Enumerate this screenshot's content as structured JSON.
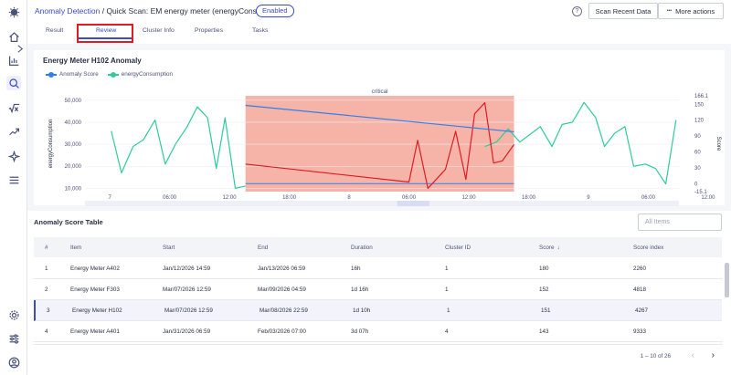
{
  "header": {
    "breadcrumb_root": "Anomaly Detection",
    "breadcrumb_sep": " / ",
    "breadcrumb_current": "Quick Scan: EM energy meter (energyConsumption)",
    "status_badge": "Enabled",
    "help_icon": "?",
    "scan_button": "Scan Recent Data",
    "more_button": "More actions",
    "more_icon": "•••"
  },
  "tabs": [
    "Result",
    "Review",
    "Cluster Info",
    "Properties",
    "Tasks"
  ],
  "active_tab": "Review",
  "sidebar_icons": [
    "logo-icon",
    "home-icon",
    "expand-icon",
    "chart-icon",
    "search-icon",
    "formula-icon",
    "trend-icon",
    "sparkle-icon",
    "menu-icon",
    "settings-icon",
    "sliders-icon",
    "user-icon"
  ],
  "chart_data": {
    "type": "line",
    "title": "Energy Meter H102 Anomaly",
    "legend": [
      "Anomaly Score",
      "energyConsumption"
    ],
    "series_colors": {
      "Anomaly Score": "#2f80ed",
      "energyConsumption": "#2ecc9a"
    },
    "ylabel_left": "energyConsumption",
    "ylabel_right": "Score",
    "y_left_ticks": [
      "50,000",
      "40,000",
      "30,000",
      "20,000",
      "10,000"
    ],
    "y_right_ticks": [
      "166.1",
      "150",
      "120",
      "90",
      "60",
      "30",
      "0",
      "-15.1"
    ],
    "x_ticks": [
      "7",
      "06:00",
      "12:00",
      "18:00",
      "8",
      "06:00",
      "12:00",
      "18:00",
      "9",
      "06:00",
      "12:00"
    ],
    "region_label": "critical",
    "region_color": "#f5a799",
    "energy_points_before": [
      [
        0.0,
        36000
      ],
      [
        0.7,
        17000
      ],
      [
        1.5,
        29000
      ],
      [
        2.2,
        32000
      ],
      [
        3.0,
        41000
      ],
      [
        3.7,
        21000
      ],
      [
        4.4,
        30000
      ],
      [
        5.2,
        38000
      ],
      [
        5.9,
        47000
      ],
      [
        6.6,
        42000
      ],
      [
        7.2,
        19000
      ],
      [
        7.8,
        42000
      ],
      [
        8.5,
        10000
      ],
      [
        9.2,
        11000
      ]
    ],
    "energy_points_after": [
      [
        25.6,
        29000
      ],
      [
        26.4,
        31000
      ],
      [
        27.2,
        37000
      ],
      [
        28.0,
        31000
      ],
      [
        28.8,
        35000
      ],
      [
        29.4,
        38000
      ],
      [
        30.2,
        29000
      ],
      [
        30.9,
        39000
      ],
      [
        31.6,
        40000
      ],
      [
        32.4,
        49000
      ],
      [
        33.2,
        42000
      ],
      [
        33.8,
        29000
      ],
      [
        34.5,
        35000
      ],
      [
        35.2,
        38000
      ],
      [
        35.8,
        20000
      ],
      [
        36.6,
        21000
      ],
      [
        37.3,
        19000
      ],
      [
        38.0,
        12000
      ],
      [
        38.7,
        41000
      ]
    ],
    "score_points_critical": [
      [
        9.2,
        37
      ],
      [
        20.4,
        3
      ],
      [
        21.0,
        82
      ],
      [
        21.7,
        -9
      ],
      [
        22.4,
        12
      ],
      [
        22.9,
        27
      ],
      [
        23.6,
        99
      ],
      [
        24.3,
        8
      ],
      [
        24.9,
        132
      ],
      [
        25.6,
        153
      ],
      [
        26.2,
        39
      ],
      [
        26.8,
        43
      ],
      [
        27.6,
        74
      ]
    ],
    "anomaly_score_line": [
      [
        9.2,
        148
      ],
      [
        27.6,
        98
      ]
    ],
    "threshold_score": 0,
    "critical_range": [
      9.2,
      27.6
    ],
    "x_range": [
      -1.8,
      38.9
    ],
    "y_left_range": [
      8500,
      52000
    ],
    "y_right_range": [
      -15.1,
      166.1
    ]
  },
  "table": {
    "title": "Anomaly Score Table",
    "filter_placeholder": "All Items",
    "columns": [
      "#",
      "Item",
      "Start",
      "End",
      "Duration",
      "Cluster ID",
      "Score",
      "Score index"
    ],
    "sort_icon": "↓",
    "rows": [
      [
        "1",
        "Energy Meter A402",
        "Jan/12/2026 14:59",
        "Jan/13/2026 06:59",
        "16h",
        "1",
        "180",
        "2260"
      ],
      [
        "2",
        "Energy Meter F303",
        "Mar/07/2026 12:59",
        "Mar/09/2026 04:59",
        "1d 16h",
        "1",
        "152",
        "4818"
      ],
      [
        "3",
        "Energy Meter H102",
        "Mar/07/2026 12:59",
        "Mar/08/2026 22:59",
        "1d 10h",
        "1",
        "151",
        "4267"
      ],
      [
        "4",
        "Energy Meter A401",
        "Jan/31/2026 06:59",
        "Feb/03/2026 07:00",
        "3d 07h",
        "4",
        "143",
        "9333"
      ]
    ],
    "pager": "1 – 10 of 26",
    "prev_icon": "‹",
    "next_icon": "›"
  }
}
